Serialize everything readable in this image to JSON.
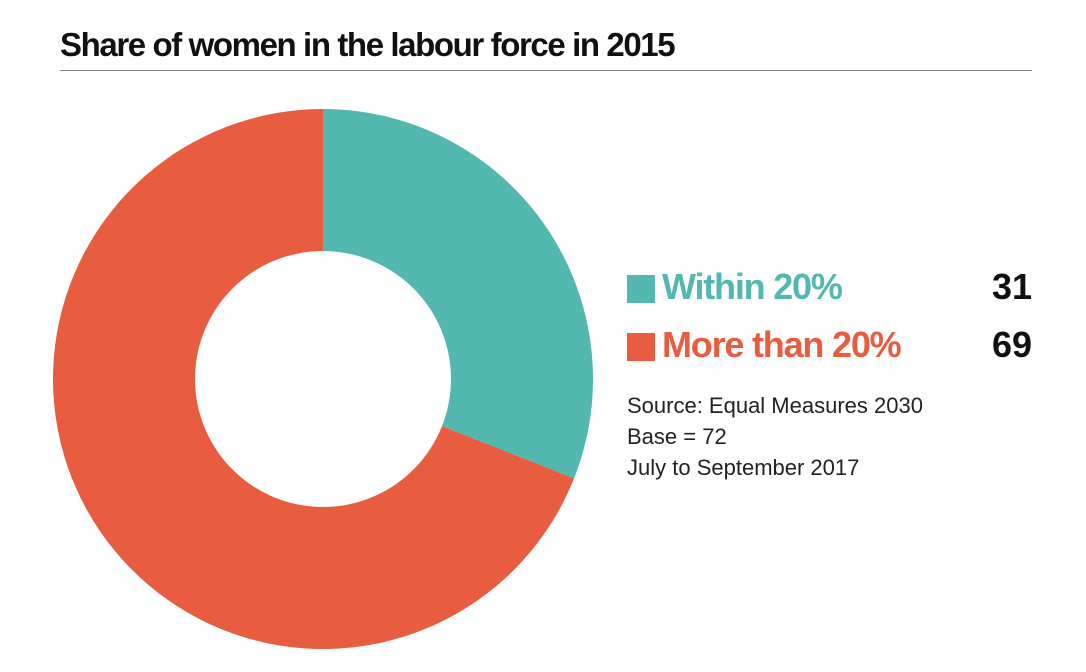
{
  "chart_data": {
    "type": "pie",
    "variant": "donut",
    "title": "Share of women in the labour force in 2015",
    "categories": [
      "Within 20%",
      "More than 20%"
    ],
    "values": [
      31,
      69
    ],
    "colors": [
      "#52b8b0",
      "#e85c3f"
    ],
    "legend_placement": "right"
  },
  "notes": {
    "source": "Source:  Equal Measures 2030",
    "base": "Base = 72",
    "period": "July to September 2017"
  }
}
